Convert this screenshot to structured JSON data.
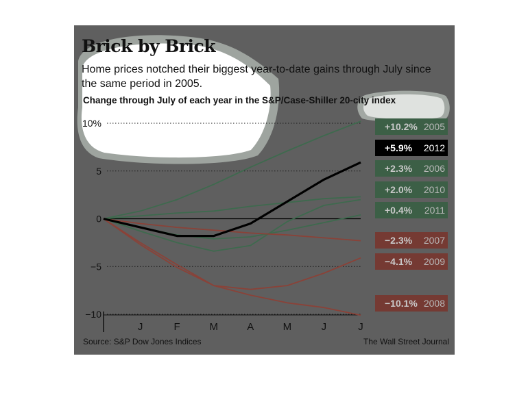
{
  "header": {
    "title": "Brick by Brick",
    "subtitle": "Home prices notched their biggest year-to-date gains through July since the same period in 2005.",
    "chart_heading": "Change through July of each year in the S&P/Case-Shiller 20-city index"
  },
  "footer": {
    "source": "Source: S&P Dow Jones Indices",
    "credit": "The Wall Street Journal"
  },
  "colors": {
    "background": "#5f5f5f",
    "gain": "#3e6a4e",
    "loss": "#8a4238",
    "highlight": "#000000",
    "gain_label_bg": "#3c5f46",
    "loss_label_bg": "#753a33"
  },
  "chart_data": {
    "type": "line",
    "title": "Change through July of each year in the S&P/Case-Shiller 20-city index",
    "x": [
      "",
      "J",
      "F",
      "M",
      "A",
      "M",
      "J",
      "J"
    ],
    "y_ticks": [
      "10%",
      "5",
      "0",
      "−5",
      "−10"
    ],
    "y_tick_values": [
      10,
      5,
      0,
      -5,
      -10
    ],
    "ylim": [
      -10,
      10
    ],
    "grid": "dotted horizontal",
    "series": [
      {
        "name": "2005",
        "label": "+10.2%",
        "trend": "gain",
        "values": [
          0,
          0.8,
          2.0,
          3.6,
          5.4,
          7.1,
          8.7,
          10.2
        ]
      },
      {
        "name": "2012",
        "label": "+5.9%",
        "trend": "highlight",
        "values": [
          0,
          -0.9,
          -1.8,
          -1.8,
          -0.5,
          1.8,
          4.1,
          5.9
        ]
      },
      {
        "name": "2006",
        "label": "+2.3%",
        "trend": "gain",
        "values": [
          0,
          0.3,
          0.6,
          0.8,
          1.3,
          1.7,
          2.1,
          2.3
        ]
      },
      {
        "name": "2010",
        "label": "+2.0%",
        "trend": "gain",
        "values": [
          0,
          -1.3,
          -2.5,
          -3.4,
          -2.8,
          -0.3,
          1.4,
          2.0
        ]
      },
      {
        "name": "2011",
        "label": "+0.4%",
        "trend": "gain",
        "values": [
          0,
          -0.9,
          -1.7,
          -2.1,
          -1.9,
          -1.2,
          -0.4,
          0.4
        ]
      },
      {
        "name": "2007",
        "label": "−2.3%",
        "trend": "loss",
        "values": [
          0,
          -0.5,
          -0.9,
          -1.2,
          -1.5,
          -1.7,
          -2.0,
          -2.3
        ]
      },
      {
        "name": "2009",
        "label": "−4.1%",
        "trend": "loss",
        "values": [
          0,
          -2.7,
          -5.1,
          -7.0,
          -7.4,
          -7.0,
          -5.7,
          -4.1
        ]
      },
      {
        "name": "2008",
        "label": "−10.1%",
        "trend": "loss",
        "values": [
          0,
          -2.5,
          -4.8,
          -7.0,
          -8.0,
          -8.8,
          -9.3,
          -10.1
        ]
      }
    ]
  }
}
